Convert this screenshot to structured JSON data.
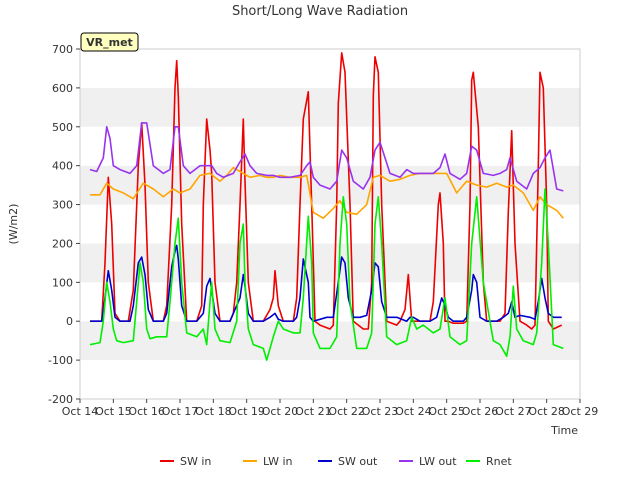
{
  "chart_data": {
    "type": "line",
    "title": "Short/Long Wave Radiation",
    "xlabel": "Time",
    "ylabel": "(W/m2)",
    "badge": "VR_met",
    "ylim": [
      -200,
      700
    ],
    "xlim": [
      14,
      29
    ],
    "y_ticks": [
      -200,
      -100,
      0,
      100,
      200,
      300,
      400,
      500,
      600,
      700
    ],
    "x_ticks": [
      {
        "v": 14,
        "label": "Oct 14"
      },
      {
        "v": 15,
        "label": "Oct 15"
      },
      {
        "v": 16,
        "label": "Oct 16"
      },
      {
        "v": 17,
        "label": "Oct 17"
      },
      {
        "v": 18,
        "label": "Oct 18"
      },
      {
        "v": 19,
        "label": "Oct 19"
      },
      {
        "v": 20,
        "label": "Oct 20"
      },
      {
        "v": 21,
        "label": "Oct 21"
      },
      {
        "v": 22,
        "label": "Oct 22"
      },
      {
        "v": 23,
        "label": "Oct 23"
      },
      {
        "v": 24,
        "label": "Oct 24"
      },
      {
        "v": 25,
        "label": "Oct 25"
      },
      {
        "v": 26,
        "label": "Oct 26"
      },
      {
        "v": 27,
        "label": "Oct 27"
      },
      {
        "v": 28,
        "label": "Oct 28"
      },
      {
        "v": 29,
        "label": "Oct 29"
      }
    ],
    "grid": "alternating horizontal bands",
    "legend_position": "bottom",
    "series": [
      {
        "name": "SW in",
        "color": "#ee0000",
        "x": [
          14.3,
          14.65,
          14.75,
          14.85,
          14.95,
          15.05,
          15.2,
          15.45,
          15.6,
          15.75,
          15.85,
          15.95,
          16.05,
          16.2,
          16.5,
          16.6,
          16.75,
          16.85,
          16.9,
          16.95,
          17.05,
          17.2,
          17.5,
          17.65,
          17.7,
          17.8,
          17.9,
          17.95,
          18.05,
          18.2,
          18.5,
          18.6,
          18.7,
          18.8,
          18.9,
          18.95,
          19.05,
          19.2,
          19.5,
          19.7,
          19.8,
          19.85,
          19.95,
          20.1,
          20.4,
          20.5,
          20.6,
          20.7,
          20.85,
          20.9,
          20.95,
          21.05,
          21.2,
          21.5,
          21.6,
          21.7,
          21.75,
          21.85,
          21.95,
          22.1,
          22.2,
          22.5,
          22.65,
          22.75,
          22.8,
          22.85,
          22.95,
          23.05,
          23.2,
          23.5,
          23.6,
          23.75,
          23.85,
          23.9,
          23.95,
          24.05,
          24.2,
          24.5,
          24.6,
          24.75,
          24.8,
          24.9,
          24.95,
          25.05,
          25.2,
          25.5,
          25.6,
          25.7,
          25.75,
          25.8,
          25.95,
          26.1,
          26.2,
          26.5,
          26.6,
          26.75,
          26.85,
          26.95,
          27.05,
          27.2,
          27.4,
          27.55,
          27.65,
          27.75,
          27.8,
          27.9,
          28.0,
          28.05,
          28.2,
          28.45
        ],
        "y": [
          0,
          0,
          150,
          370,
          250,
          20,
          0,
          0,
          80,
          400,
          510,
          350,
          100,
          0,
          0,
          40,
          300,
          600,
          670,
          580,
          250,
          0,
          0,
          40,
          300,
          520,
          440,
          380,
          100,
          0,
          0,
          20,
          100,
          300,
          520,
          360,
          100,
          0,
          0,
          30,
          60,
          130,
          40,
          0,
          0,
          60,
          300,
          520,
          590,
          440,
          300,
          0,
          -10,
          -20,
          -10,
          300,
          560,
          690,
          640,
          300,
          0,
          -20,
          -20,
          100,
          580,
          680,
          640,
          300,
          0,
          -10,
          0,
          30,
          120,
          60,
          0,
          0,
          0,
          0,
          50,
          300,
          330,
          200,
          0,
          0,
          -5,
          -5,
          0,
          300,
          620,
          640,
          500,
          100,
          0,
          0,
          0,
          20,
          280,
          490,
          200,
          0,
          -10,
          -20,
          -10,
          400,
          640,
          600,
          300,
          0,
          -20,
          -10
        ]
      },
      {
        "name": "LW in",
        "color": "#ffa500",
        "x": [
          14.3,
          14.6,
          14.8,
          15.0,
          15.3,
          15.6,
          15.9,
          16.2,
          16.5,
          16.8,
          17.0,
          17.3,
          17.6,
          17.9,
          18.2,
          18.4,
          18.6,
          18.8,
          19.1,
          19.4,
          19.6,
          19.8,
          20.0,
          20.3,
          20.6,
          20.8,
          21.0,
          21.3,
          21.6,
          21.8,
          22.0,
          22.3,
          22.6,
          22.8,
          23.0,
          23.3,
          23.6,
          23.9,
          24.2,
          24.5,
          24.8,
          25.0,
          25.3,
          25.6,
          25.9,
          26.2,
          26.5,
          26.8,
          27.0,
          27.3,
          27.6,
          27.8,
          28.0,
          28.3,
          28.5
        ],
        "y": [
          325,
          325,
          355,
          340,
          330,
          315,
          355,
          340,
          320,
          340,
          330,
          340,
          375,
          380,
          360,
          375,
          395,
          385,
          370,
          375,
          370,
          370,
          375,
          370,
          370,
          375,
          280,
          265,
          290,
          310,
          280,
          275,
          300,
          370,
          375,
          360,
          365,
          375,
          380,
          380,
          380,
          380,
          330,
          360,
          350,
          345,
          355,
          345,
          350,
          330,
          285,
          320,
          300,
          285,
          265
        ]
      },
      {
        "name": "SW out",
        "color": "#0000cc",
        "x": [
          14.3,
          14.65,
          14.75,
          14.85,
          14.95,
          15.05,
          15.2,
          15.5,
          15.6,
          15.75,
          15.85,
          15.95,
          16.05,
          16.2,
          16.5,
          16.6,
          16.75,
          16.85,
          16.9,
          16.95,
          17.05,
          17.2,
          17.5,
          17.7,
          17.8,
          17.9,
          18.05,
          18.2,
          18.5,
          18.6,
          18.8,
          18.9,
          18.95,
          19.05,
          19.2,
          19.5,
          19.7,
          19.85,
          19.95,
          20.1,
          20.4,
          20.5,
          20.6,
          20.7,
          20.85,
          20.9,
          21.0,
          21.2,
          21.4,
          21.6,
          21.75,
          21.85,
          21.95,
          22.05,
          22.2,
          22.4,
          22.6,
          22.75,
          22.85,
          22.95,
          23.05,
          23.2,
          23.5,
          23.8,
          23.9,
          24.0,
          24.2,
          24.5,
          24.7,
          24.85,
          24.95,
          25.05,
          25.2,
          25.5,
          25.6,
          25.75,
          25.8,
          25.9,
          26.0,
          26.2,
          26.5,
          26.7,
          26.85,
          26.95,
          27.05,
          27.2,
          27.5,
          27.65,
          27.75,
          27.85,
          27.95,
          28.05,
          28.2,
          28.45
        ],
        "y": [
          0,
          0,
          60,
          130,
          80,
          10,
          0,
          0,
          40,
          150,
          165,
          120,
          30,
          0,
          0,
          20,
          140,
          180,
          195,
          160,
          40,
          0,
          0,
          20,
          90,
          110,
          20,
          0,
          0,
          20,
          60,
          120,
          90,
          20,
          0,
          0,
          10,
          20,
          5,
          0,
          0,
          10,
          60,
          160,
          100,
          10,
          0,
          5,
          10,
          10,
          100,
          165,
          150,
          60,
          10,
          10,
          15,
          80,
          150,
          140,
          50,
          10,
          10,
          0,
          10,
          10,
          0,
          0,
          10,
          60,
          40,
          10,
          0,
          0,
          10,
          80,
          120,
          100,
          10,
          0,
          0,
          10,
          20,
          50,
          10,
          15,
          10,
          5,
          50,
          110,
          60,
          20,
          10,
          10
        ]
      },
      {
        "name": "LW out",
        "color": "#9933ee",
        "x": [
          14.3,
          14.5,
          14.7,
          14.8,
          14.9,
          15.0,
          15.2,
          15.5,
          15.7,
          15.85,
          16.0,
          16.2,
          16.5,
          16.7,
          16.85,
          16.95,
          17.1,
          17.3,
          17.6,
          17.8,
          17.95,
          18.1,
          18.3,
          18.6,
          18.8,
          18.95,
          19.1,
          19.3,
          19.6,
          19.8,
          20.0,
          20.3,
          20.6,
          20.8,
          20.9,
          21.0,
          21.2,
          21.5,
          21.7,
          21.85,
          22.0,
          22.2,
          22.5,
          22.7,
          22.85,
          23.0,
          23.3,
          23.6,
          23.8,
          24.0,
          24.3,
          24.6,
          24.8,
          24.95,
          25.1,
          25.4,
          25.6,
          25.75,
          25.9,
          26.1,
          26.4,
          26.6,
          26.8,
          26.9,
          27.1,
          27.4,
          27.6,
          27.8,
          27.95,
          28.1,
          28.3,
          28.5
        ],
        "y": [
          390,
          385,
          420,
          500,
          470,
          400,
          390,
          380,
          400,
          510,
          510,
          400,
          380,
          390,
          500,
          500,
          400,
          380,
          400,
          400,
          400,
          380,
          370,
          380,
          410,
          430,
          400,
          380,
          375,
          375,
          370,
          370,
          375,
          400,
          410,
          370,
          350,
          340,
          360,
          440,
          420,
          360,
          340,
          370,
          440,
          460,
          380,
          370,
          390,
          380,
          380,
          380,
          395,
          430,
          380,
          365,
          380,
          450,
          440,
          380,
          375,
          380,
          390,
          420,
          360,
          340,
          380,
          395,
          420,
          440,
          340,
          335
        ]
      },
      {
        "name": "Rnet",
        "color": "#00ee00",
        "x": [
          14.3,
          14.6,
          14.7,
          14.8,
          14.9,
          15.0,
          15.1,
          15.3,
          15.6,
          15.7,
          15.8,
          15.9,
          16.0,
          16.1,
          16.3,
          16.6,
          16.7,
          16.85,
          16.95,
          17.05,
          17.2,
          17.5,
          17.7,
          17.8,
          17.9,
          17.95,
          18.05,
          18.2,
          18.5,
          18.7,
          18.8,
          18.9,
          18.95,
          19.05,
          19.2,
          19.5,
          19.6,
          19.8,
          19.95,
          20.1,
          20.4,
          20.6,
          20.7,
          20.85,
          20.95,
          21.0,
          21.2,
          21.5,
          21.7,
          21.8,
          21.9,
          22.0,
          22.1,
          22.3,
          22.6,
          22.75,
          22.85,
          22.95,
          23.05,
          23.2,
          23.5,
          23.8,
          23.95,
          24.1,
          24.3,
          24.6,
          24.8,
          24.95,
          25.1,
          25.4,
          25.6,
          25.75,
          25.9,
          26.1,
          26.4,
          26.6,
          26.8,
          26.9,
          27.0,
          27.1,
          27.3,
          27.6,
          27.7,
          27.85,
          27.95,
          28.05,
          28.2,
          28.5
        ],
        "y": [
          -60,
          -55,
          0,
          100,
          50,
          -20,
          -50,
          -55,
          -50,
          50,
          150,
          100,
          -20,
          -45,
          -40,
          -40,
          50,
          200,
          265,
          100,
          -30,
          -40,
          -20,
          -60,
          50,
          100,
          -20,
          -50,
          -55,
          0,
          200,
          250,
          100,
          -20,
          -60,
          -70,
          -100,
          -40,
          0,
          -20,
          -30,
          -30,
          60,
          270,
          150,
          -30,
          -70,
          -70,
          -40,
          200,
          320,
          250,
          50,
          -70,
          -70,
          -30,
          250,
          320,
          200,
          -40,
          -60,
          -50,
          10,
          -20,
          -10,
          -30,
          -20,
          60,
          -40,
          -60,
          -50,
          200,
          320,
          100,
          -50,
          -60,
          -90,
          -40,
          90,
          -20,
          -50,
          -60,
          -30,
          150,
          340,
          200,
          -60,
          -70
        ]
      }
    ]
  }
}
